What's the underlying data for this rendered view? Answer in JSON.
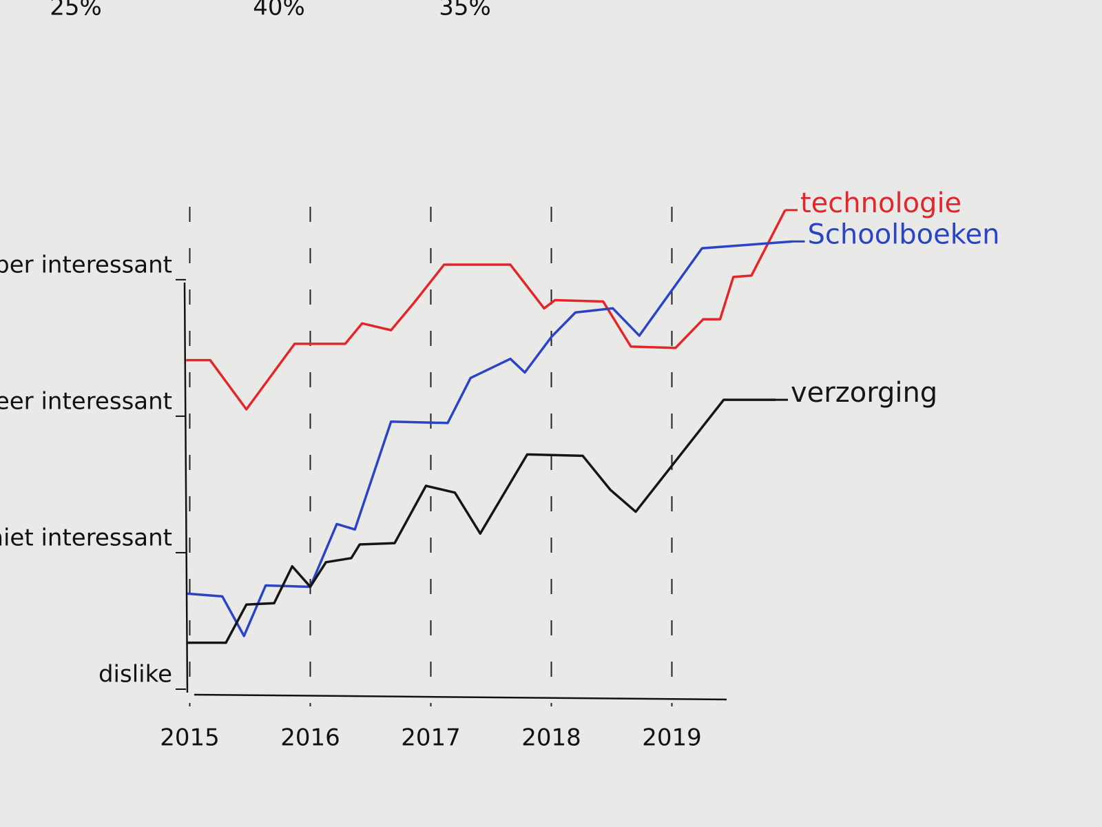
{
  "chart_data": {
    "type": "line",
    "annotations": [
      "25%",
      "40%",
      "35%"
    ],
    "xlim": [
      2014.9,
      2020.1
    ],
    "xticks": [
      2015,
      2016,
      2017,
      2018,
      2019
    ],
    "ylim": [
      0,
      3.6
    ],
    "yticks": [
      {
        "value": 0,
        "label": "dislike"
      },
      {
        "value": 1,
        "label": "niet interessant"
      },
      {
        "value": 2,
        "label": "meer interessant"
      },
      {
        "value": 3,
        "label": "super interessant"
      }
    ],
    "grid": true,
    "series": [
      {
        "name": "technologie",
        "color": "#e3262a",
        "x": [
          2014.97,
          2015.17,
          2015.47,
          2015.87,
          2016.29,
          2016.43,
          2016.67,
          2016.86,
          2017.11,
          2017.66,
          2017.94,
          2018.03,
          2018.43,
          2018.66,
          2019.03,
          2019.26,
          2019.4,
          2019.51,
          2019.66,
          2019.94
        ],
        "values": [
          2.41,
          2.41,
          2.05,
          2.53,
          2.53,
          2.68,
          2.63,
          2.83,
          3.11,
          3.11,
          2.79,
          2.85,
          2.84,
          2.51,
          2.5,
          2.71,
          2.71,
          3.02,
          3.03,
          3.51
        ]
      },
      {
        "name": "Schoolboeken",
        "color": "#2b44c4",
        "x": [
          2014.98,
          2015.27,
          2015.45,
          2015.63,
          2016.0,
          2016.22,
          2016.37,
          2016.67,
          2017.14,
          2017.33,
          2017.66,
          2017.78,
          2018.0,
          2018.2,
          2018.51,
          2018.73,
          2019.25,
          2020.0
        ],
        "values": [
          0.7,
          0.68,
          0.39,
          0.76,
          0.75,
          1.21,
          1.17,
          1.96,
          1.95,
          2.28,
          2.42,
          2.32,
          2.58,
          2.76,
          2.79,
          2.59,
          3.23,
          3.28
        ]
      },
      {
        "name": "verzorging",
        "color": "#151515",
        "x": [
          2014.98,
          2015.3,
          2015.47,
          2015.7,
          2015.85,
          2016.0,
          2016.13,
          2016.34,
          2016.41,
          2016.7,
          2016.96,
          2017.2,
          2017.41,
          2017.8,
          2018.26,
          2018.49,
          2018.7,
          2019.43,
          2019.86
        ],
        "values": [
          0.34,
          0.34,
          0.62,
          0.63,
          0.9,
          0.75,
          0.93,
          0.96,
          1.06,
          1.07,
          1.49,
          1.44,
          1.14,
          1.72,
          1.71,
          1.46,
          1.3,
          2.12,
          2.12
        ]
      }
    ]
  }
}
